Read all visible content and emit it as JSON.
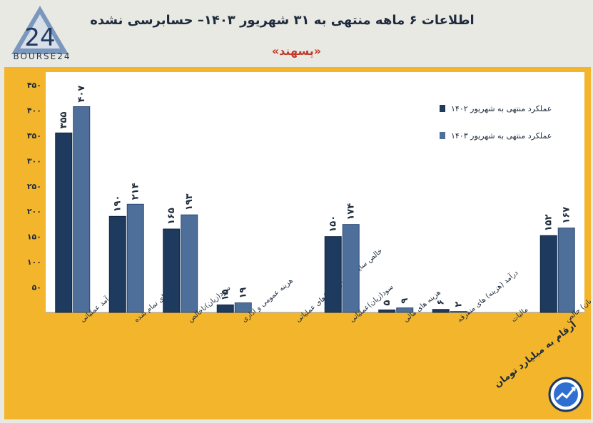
{
  "header": {
    "logo_text": "BOURSE24",
    "title": "اطلاعات ۶ ماهه منتهی به ۳۱ شهریور ۱۴۰۳– حسابرسی نشده",
    "subtitle": "«پسهند»"
  },
  "unit_note": "ارقام به میلیارد تومان",
  "colors": {
    "series_1402": "#1f3a5f",
    "series_1403": "#4d6f99",
    "frame": "#f3b52b",
    "plot_bg": "#ffffff"
  },
  "chart_data": {
    "type": "bar",
    "title": "اطلاعات ۶ ماهه منتهی به ۳۱ شهریور ۱۴۰۳– حسابرسی نشده",
    "categories": [
      "درآمد عملیاتی",
      "بهای تمام شده",
      "سود(زیان)ناخالص",
      "هزینه عمومی و اداری",
      "خالص سایر درآمد(هزینه)های عملیاتی",
      "سود(زیان)عملیاتی",
      "هزینه های مالی",
      "درآمد (هزینه) های متفرقه",
      "مالیات",
      "سود(زیان) خالص"
    ],
    "series": [
      {
        "name": "عملکرد منتهی به شهریور ۱۴۰۲",
        "values": [
          355,
          190,
          165,
          15,
          0,
          150,
          5,
          6,
          0,
          152
        ],
        "labels": [
          "۳۵۵",
          "۱۹۰",
          "۱۶۵",
          "۱۵",
          "",
          "۱۵۰",
          "۵",
          "۶",
          "",
          "۱۵۲"
        ]
      },
      {
        "name": "عملکرد منتهی به شهریور ۱۴۰۳",
        "values": [
          407,
          214,
          193,
          19,
          0,
          174,
          9,
          2,
          0,
          167
        ],
        "labels": [
          "۴۰۷",
          "۲۱۴",
          "۱۹۳",
          "۱۹",
          "",
          "۱۷۴",
          "۹",
          "۲",
          "",
          "۱۶۷"
        ]
      }
    ],
    "y_ticks": [
      50,
      100,
      150,
      200,
      250,
      300,
      350,
      400,
      450
    ],
    "y_tick_labels": [
      "۵۰",
      "۱۰۰",
      "۱۵۰",
      "۲۰۰",
      "۲۵۰",
      "۳۰۰",
      "۳۵۰",
      "۴۰۰",
      "۴۵۰"
    ],
    "ylim": [
      0,
      450
    ],
    "grid": false,
    "legend_position": "top-right"
  }
}
